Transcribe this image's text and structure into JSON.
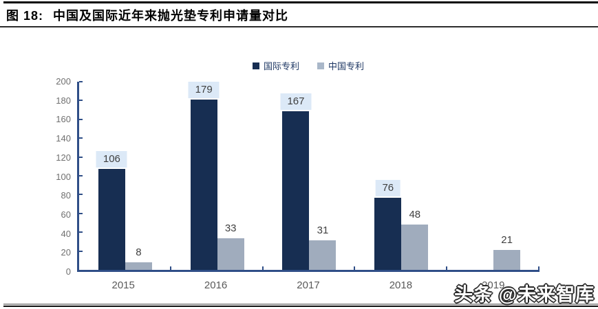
{
  "header": {
    "figure_label": "图 18:",
    "title": "中国及国际近年来抛光垫专利申请量对比"
  },
  "watermark": "头条 @未来智库",
  "colors": {
    "international_bar": "#172E52",
    "china_bar": "#A0ACBD",
    "china_legend_swatch": "#A9B7C9",
    "value_label_box": "#DCE9F7",
    "axis": "#2F4E87",
    "y_tick_label": "#6F6F6F",
    "x_tick_label": "#595959",
    "value_label_text": "#3F3F3F",
    "legend_text": "#1F3864"
  },
  "chart_data": {
    "type": "bar",
    "categories": [
      "2015",
      "2016",
      "2017",
      "2018",
      "2019"
    ],
    "series": [
      {
        "name": "国际专利",
        "color": "#172E52",
        "legend_color": "#172E52",
        "values": [
          106,
          179,
          167,
          76,
          null
        ],
        "label_background": "#DCE9F7"
      },
      {
        "name": "中国专利",
        "color": "#A0ACBD",
        "legend_color": "#A9B7C9",
        "values": [
          8,
          33,
          31,
          48,
          21
        ],
        "label_background": null
      }
    ],
    "title": "中国及国际近年来抛光垫专利申请量对比",
    "xlabel": "",
    "ylabel": "",
    "ylim": [
      0,
      200
    ],
    "ytick_step": 20,
    "grid": false,
    "legend_position": "top-center",
    "value_labels": true
  }
}
